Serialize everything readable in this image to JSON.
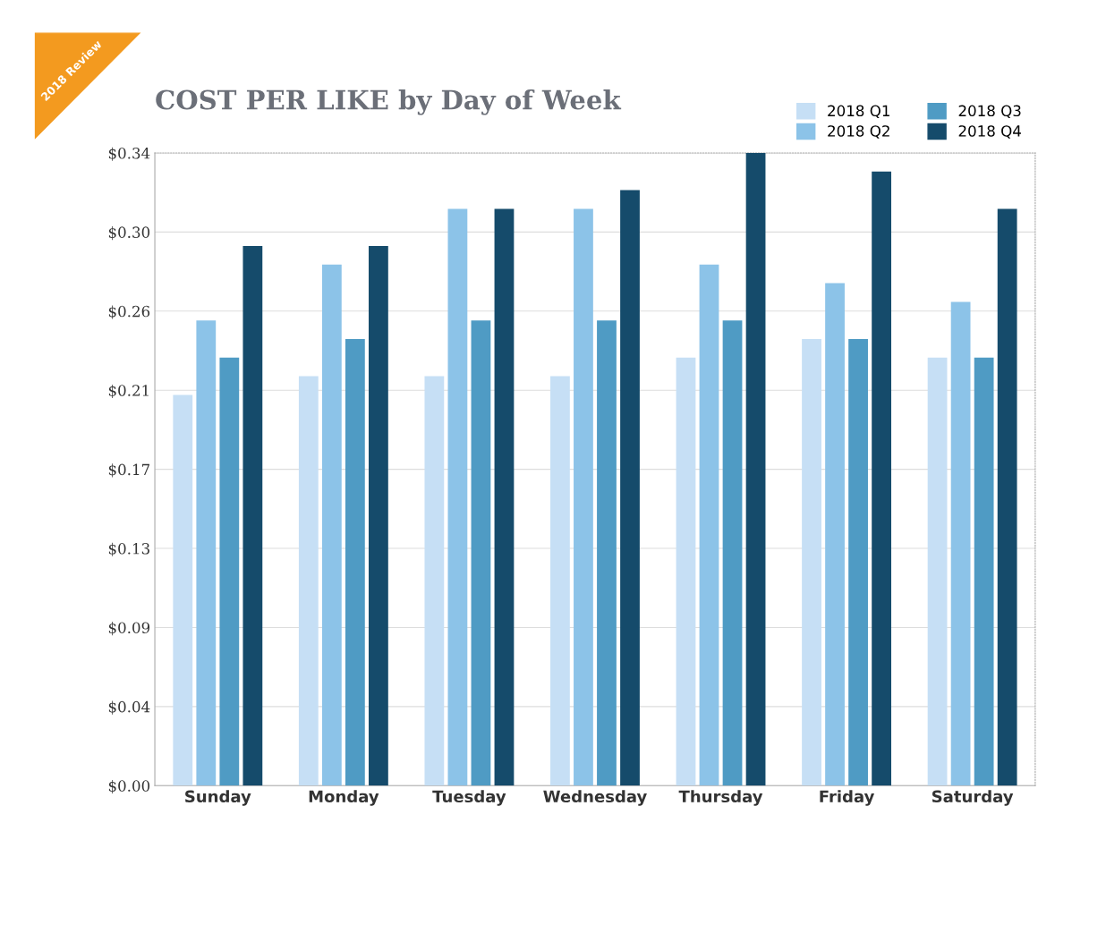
{
  "chart_data": {
    "type": "bar",
    "title": "COST PER LIKE by Day of Week",
    "annotations": [
      "2018 Review"
    ],
    "categories": [
      "Sunday",
      "Monday",
      "Tuesday",
      "Wednesday",
      "Thursday",
      "Friday",
      "Saturday"
    ],
    "series": [
      {
        "name": "2018 Q1",
        "color": "#c6dff5",
        "values": [
          0.21,
          0.22,
          0.22,
          0.22,
          0.23,
          0.24,
          0.23
        ]
      },
      {
        "name": "2018 Q2",
        "color": "#8cc3e8",
        "values": [
          0.25,
          0.28,
          0.31,
          0.31,
          0.28,
          0.27,
          0.26
        ]
      },
      {
        "name": "2018 Q3",
        "color": "#4f9bc4",
        "values": [
          0.23,
          0.24,
          0.25,
          0.25,
          0.25,
          0.24,
          0.23
        ]
      },
      {
        "name": "2018 Q4",
        "color": "#154b6b",
        "values": [
          0.29,
          0.29,
          0.31,
          0.32,
          0.34,
          0.33,
          0.31
        ]
      }
    ],
    "ylim": [
      0,
      0.34
    ],
    "yticks": [
      {
        "value": 0,
        "label": "$0.00"
      },
      {
        "value": 0.0425,
        "label": "$0.04"
      },
      {
        "value": 0.085,
        "label": "$0.09"
      },
      {
        "value": 0.1275,
        "label": "$0.13"
      },
      {
        "value": 0.17,
        "label": "$0.17"
      },
      {
        "value": 0.2125,
        "label": "$0.21"
      },
      {
        "value": 0.255,
        "label": "$0.26"
      },
      {
        "value": 0.2975,
        "label": "$0.30"
      },
      {
        "value": 0.34,
        "label": "$0.34"
      }
    ],
    "grid": "y",
    "legend": "top right"
  }
}
